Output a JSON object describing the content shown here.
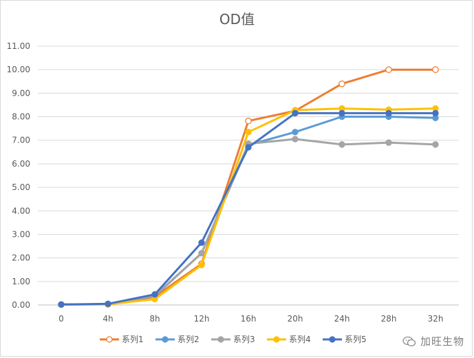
{
  "chart_data": {
    "type": "line",
    "title": "OD值",
    "categories": [
      "0",
      "4h",
      "8h",
      "12h",
      "16h",
      "20h",
      "24h",
      "28h",
      "32h"
    ],
    "ylim": [
      0,
      11
    ],
    "yticks": [
      "0.00",
      "1.00",
      "2.00",
      "3.00",
      "4.00",
      "5.00",
      "6.00",
      "7.00",
      "8.00",
      "9.00",
      "10.00",
      "11.00"
    ],
    "grid": true,
    "legend_position": "bottom",
    "series": [
      {
        "name": "系列1",
        "color": "#ED7D31",
        "marker": "open-circle",
        "values": [
          0.02,
          0.03,
          0.35,
          1.75,
          7.82,
          8.25,
          9.4,
          10.0,
          10.0
        ]
      },
      {
        "name": "系列2",
        "color": "#5B9BD5",
        "marker": "circle",
        "values": [
          0.02,
          0.03,
          0.38,
          2.2,
          6.8,
          7.35,
          8.0,
          8.0,
          7.95
        ]
      },
      {
        "name": "系列3",
        "color": "#A5A5A5",
        "marker": "circle",
        "values": [
          0.02,
          0.03,
          0.4,
          2.2,
          6.85,
          7.05,
          6.82,
          6.9,
          6.82
        ]
      },
      {
        "name": "系列4",
        "color": "#FFC000",
        "marker": "circle",
        "values": [
          0.02,
          0.03,
          0.25,
          1.7,
          7.35,
          8.28,
          8.35,
          8.3,
          8.35
        ]
      },
      {
        "name": "系列5",
        "color": "#4472C4",
        "marker": "circle",
        "values": [
          0.02,
          0.05,
          0.45,
          2.65,
          6.7,
          8.15,
          8.15,
          8.15,
          8.15
        ]
      }
    ]
  },
  "watermark": {
    "text": "加旺生物",
    "icon": "wechat-icon"
  }
}
